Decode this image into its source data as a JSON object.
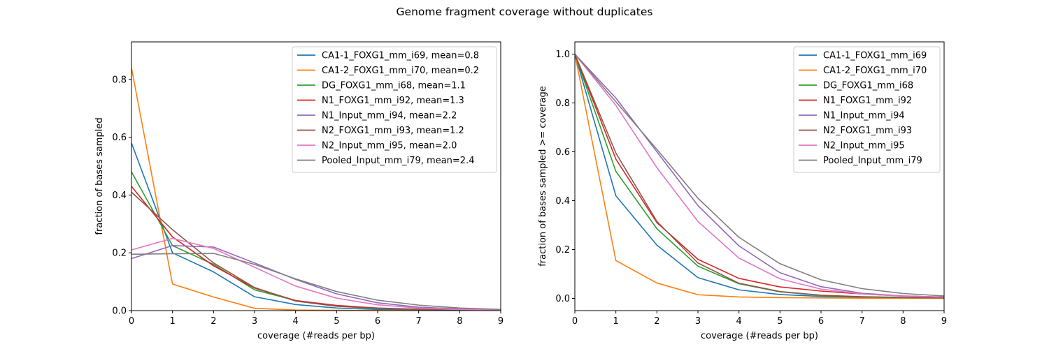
{
  "figure": {
    "title": "Genome fragment coverage without duplicates"
  },
  "chart_data": [
    {
      "type": "line",
      "title": "",
      "xlabel": "coverage (#reads per bp)",
      "ylabel": "fraction of bases sampled",
      "xlim": [
        0,
        9
      ],
      "ylim": [
        0,
        0.93
      ],
      "xticks": [
        0,
        1,
        2,
        3,
        4,
        5,
        6,
        7,
        8,
        9
      ],
      "yticks": [
        0.0,
        0.2,
        0.4,
        0.6,
        0.8
      ],
      "ytick_labels": [
        "0.0",
        "0.2",
        "0.4",
        "0.6",
        "0.8"
      ],
      "grid": false,
      "legend_position": "top-right",
      "x": [
        0,
        1,
        2,
        3,
        4,
        5,
        6,
        7,
        8,
        9
      ],
      "series": [
        {
          "name": "CA1-1_FOXG1_mm_i69, mean=0.8",
          "color": "#1f77b4",
          "values": [
            0.58,
            0.2,
            0.134,
            0.048,
            0.021,
            0.009,
            0.004,
            0.002,
            0.001,
            0.0005
          ]
        },
        {
          "name": "CA1-2_FOXG1_mm_i70, mean=0.2",
          "color": "#ff7f0e",
          "values": [
            0.84,
            0.092,
            0.047,
            0.008,
            0.002,
            0.001,
            0.0005,
            0.0,
            0.0,
            0.0
          ]
        },
        {
          "name": "DG_FOXG1_mm_i68, mean=1.1",
          "color": "#2ca02c",
          "values": [
            0.48,
            0.225,
            0.16,
            0.072,
            0.035,
            0.016,
            0.007,
            0.004,
            0.002,
            0.001
          ]
        },
        {
          "name": "N1_FOXG1_mm_i92, mean=1.3",
          "color": "#d62728",
          "values": [
            0.43,
            0.255,
            0.155,
            0.078,
            0.035,
            0.018,
            0.009,
            0.005,
            0.003,
            0.002
          ]
        },
        {
          "name": "N1_Input_mm_i94, mean=2.2",
          "color": "#9467bd",
          "values": [
            0.18,
            0.225,
            0.22,
            0.165,
            0.108,
            0.058,
            0.027,
            0.012,
            0.006,
            0.003
          ]
        },
        {
          "name": "N2_FOXG1_mm_i93, mean=1.2",
          "color": "#8c564b",
          "values": [
            0.41,
            0.28,
            0.165,
            0.08,
            0.033,
            0.015,
            0.008,
            0.004,
            0.002,
            0.001
          ]
        },
        {
          "name": "N2_Input_mm_i95, mean=2.0",
          "color": "#e377c2",
          "values": [
            0.21,
            0.25,
            0.215,
            0.15,
            0.085,
            0.043,
            0.02,
            0.009,
            0.004,
            0.002
          ]
        },
        {
          "name": "Pooled_Input_mm_i79, mean=2.4",
          "color": "#7f7f7f",
          "values": [
            0.195,
            0.197,
            0.198,
            0.16,
            0.11,
            0.066,
            0.036,
            0.019,
            0.009,
            0.004
          ]
        }
      ]
    },
    {
      "type": "line",
      "title": "",
      "xlabel": "coverage (#reads per bp)",
      "ylabel": "fraction of bases sampled >= coverage",
      "xlim": [
        0,
        9
      ],
      "ylim": [
        -0.05,
        1.05
      ],
      "xticks": [
        0,
        1,
        2,
        3,
        4,
        5,
        6,
        7,
        8,
        9
      ],
      "yticks": [
        0.0,
        0.2,
        0.4,
        0.6,
        0.8,
        1.0
      ],
      "ytick_labels": [
        "0.0",
        "0.2",
        "0.4",
        "0.6",
        "0.8",
        "1.0"
      ],
      "grid": false,
      "legend_position": "top-right",
      "x": [
        0,
        1,
        2,
        3,
        4,
        5,
        6,
        7,
        8,
        9
      ],
      "series": [
        {
          "name": "CA1-1_FOXG1_mm_i69",
          "color": "#1f77b4",
          "values": [
            1.0,
            0.42,
            0.218,
            0.085,
            0.035,
            0.016,
            0.008,
            0.004,
            0.002,
            0.001
          ]
        },
        {
          "name": "CA1-2_FOXG1_mm_i70",
          "color": "#ff7f0e",
          "values": [
            1.0,
            0.155,
            0.063,
            0.015,
            0.006,
            0.003,
            0.002,
            0.001,
            0.0,
            0.0
          ]
        },
        {
          "name": "DG_FOXG1_mm_i68",
          "color": "#2ca02c",
          "values": [
            1.0,
            0.52,
            0.285,
            0.132,
            0.06,
            0.027,
            0.012,
            0.006,
            0.003,
            0.002
          ]
        },
        {
          "name": "N1_FOXG1_mm_i92",
          "color": "#d62728",
          "values": [
            1.0,
            0.57,
            0.31,
            0.16,
            0.082,
            0.047,
            0.03,
            0.018,
            0.01,
            0.006
          ]
        },
        {
          "name": "N1_Input_mm_i94",
          "color": "#9467bd",
          "values": [
            1.0,
            0.82,
            0.6,
            0.38,
            0.215,
            0.105,
            0.048,
            0.021,
            0.01,
            0.005
          ]
        },
        {
          "name": "N2_FOXG1_mm_i93",
          "color": "#8c564b",
          "values": [
            1.0,
            0.595,
            0.315,
            0.145,
            0.062,
            0.028,
            0.013,
            0.007,
            0.004,
            0.002
          ]
        },
        {
          "name": "N2_Input_mm_i95",
          "color": "#e377c2",
          "values": [
            1.0,
            0.79,
            0.535,
            0.315,
            0.165,
            0.08,
            0.038,
            0.018,
            0.009,
            0.005
          ]
        },
        {
          "name": "Pooled_Input_mm_i79",
          "color": "#7f7f7f",
          "values": [
            1.0,
            0.805,
            0.61,
            0.41,
            0.25,
            0.142,
            0.076,
            0.04,
            0.02,
            0.01
          ]
        }
      ]
    }
  ]
}
